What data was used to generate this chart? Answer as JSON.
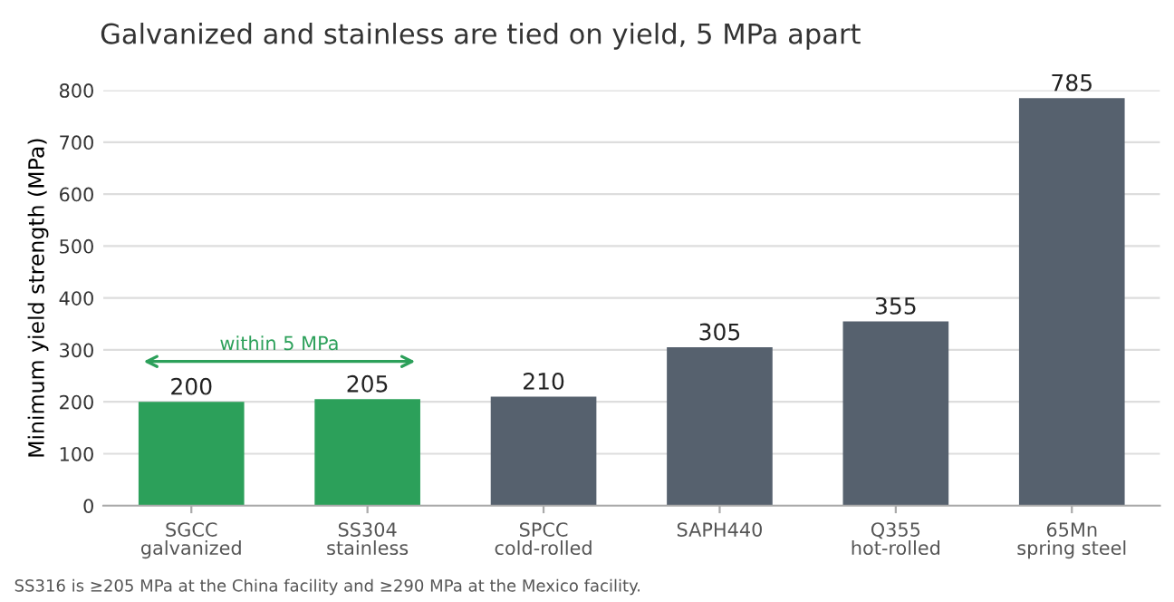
{
  "chart_data": {
    "type": "bar",
    "title": "Galvanized and stainless are tied on yield, 5 MPa apart",
    "ylabel": "Minimum yield strength (MPa)",
    "categories": [
      "SGCC\ngalvanized",
      "SS304\nstainless",
      "SPCC\ncold-rolled",
      "SAPH440",
      "Q355\nhot-rolled",
      "65Mn\nspring steel"
    ],
    "values": [
      200,
      205,
      210,
      305,
      355,
      785
    ],
    "colors": [
      "#2ca05a",
      "#2ca05a",
      "#56616e",
      "#56616e",
      "#56616e",
      "#56616e"
    ],
    "ylim": [
      0,
      800
    ],
    "yticks": [
      0,
      100,
      200,
      300,
      400,
      500,
      600,
      700,
      800
    ],
    "grid": "y",
    "data_labels": true,
    "annotations": [
      "within 5 MPa",
      "SS316 is ≥205 MPa at the China facility and ≥290 MPa at the Mexico facility."
    ]
  }
}
